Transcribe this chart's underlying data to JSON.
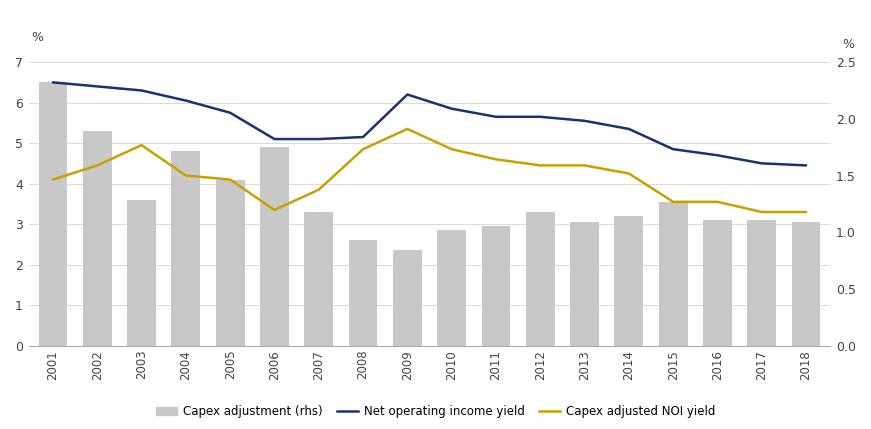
{
  "years": [
    2001,
    2002,
    2003,
    2004,
    2005,
    2006,
    2007,
    2008,
    2009,
    2010,
    2011,
    2012,
    2013,
    2014,
    2015,
    2016,
    2017,
    2018
  ],
  "capex_bars_left": [
    6.5,
    5.3,
    3.6,
    4.8,
    4.1,
    4.9,
    3.3,
    2.6,
    2.35,
    2.85,
    2.95,
    3.3,
    3.05,
    3.2,
    3.55,
    3.1,
    3.1,
    3.05
  ],
  "noi_yield": [
    6.5,
    6.4,
    6.3,
    6.05,
    5.75,
    5.1,
    5.1,
    5.15,
    6.2,
    5.85,
    5.65,
    5.65,
    5.55,
    5.35,
    4.85,
    4.7,
    4.5,
    4.45
  ],
  "capex_adjusted_noi_yield": [
    4.1,
    4.45,
    4.95,
    4.2,
    4.1,
    3.35,
    3.85,
    4.85,
    5.35,
    4.85,
    4.6,
    4.45,
    4.45,
    4.25,
    3.55,
    3.55,
    3.3,
    3.3
  ],
  "bar_color": "#c8c8c8",
  "noi_line_color": "#1a3270",
  "capex_line_color": "#c8a000",
  "left_ylim": [
    0,
    7
  ],
  "left_yticks": [
    0,
    1,
    2,
    3,
    4,
    5,
    6,
    7
  ],
  "right_ylim": [
    0.0,
    2.5
  ],
  "right_yticks": [
    0.0,
    0.5,
    1.0,
    1.5,
    2.0,
    2.5
  ],
  "left_ylabel": "%",
  "right_ylabel": "%",
  "legend_labels": [
    "Capex adjustment (rhs)",
    "Net operating income yield",
    "Capex adjusted NOI yield"
  ],
  "background_color": "#ffffff",
  "grid_color": "#d5d5d5"
}
